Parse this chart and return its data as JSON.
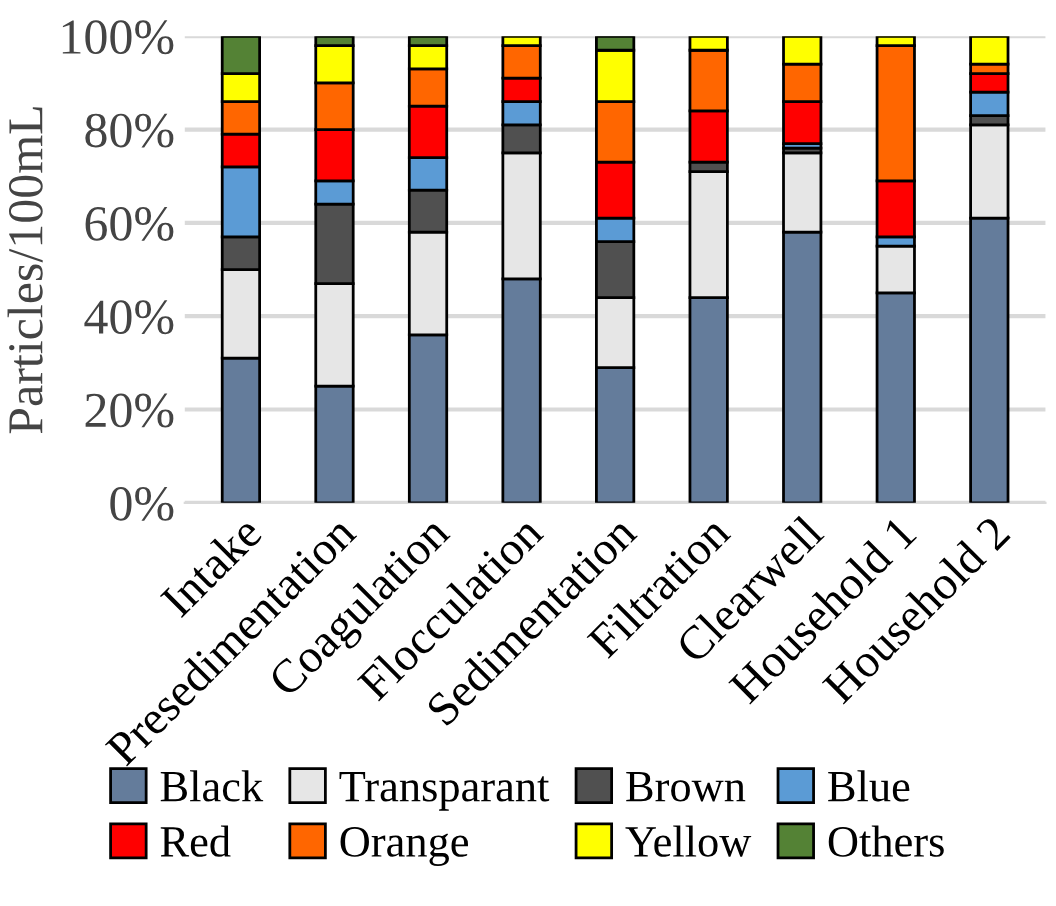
{
  "chart_data": {
    "type": "bar",
    "stacked": true,
    "ylabel": "Particles/100mL",
    "categories": [
      "Intake",
      "Presedimentation",
      "Coagulation",
      "Flocculation",
      "Sedimentation",
      "Filtration",
      "Clearwell",
      "Household 1",
      "Household 2"
    ],
    "series": [
      {
        "name": "Black",
        "color": "#647c9b",
        "values": [
          31,
          25,
          36,
          48,
          29,
          44,
          58,
          45,
          61
        ]
      },
      {
        "name": "Transparant",
        "color": "#e6e6e6",
        "values": [
          19,
          22,
          22,
          27,
          15,
          27,
          17,
          10,
          20
        ]
      },
      {
        "name": "Brown",
        "color": "#505050",
        "values": [
          7,
          17,
          9,
          6,
          12,
          2,
          1,
          0,
          2
        ]
      },
      {
        "name": "Blue",
        "color": "#5b9bd5",
        "values": [
          15,
          5,
          7,
          5,
          5,
          0,
          1,
          2,
          5
        ]
      },
      {
        "name": "Red",
        "color": "#ff0000",
        "values": [
          7,
          11,
          11,
          5,
          12,
          11,
          9,
          12,
          4
        ]
      },
      {
        "name": "Orange",
        "color": "#ff6600",
        "values": [
          7,
          10,
          8,
          7,
          13,
          13,
          8,
          29,
          2
        ]
      },
      {
        "name": "Yellow",
        "color": "#ffff00",
        "values": [
          6,
          8,
          5,
          2,
          11,
          3,
          6,
          2,
          6
        ]
      },
      {
        "name": "Others",
        "color": "#548235",
        "values": [
          8,
          2,
          2,
          0,
          3,
          0,
          0,
          0,
          0
        ]
      }
    ],
    "ylim": [
      0,
      100
    ],
    "yticks": [
      {
        "value": 0,
        "label": "0%"
      },
      {
        "value": 20,
        "label": "20%"
      },
      {
        "value": 40,
        "label": "40%"
      },
      {
        "value": 60,
        "label": "60%"
      },
      {
        "value": 80,
        "label": "80%"
      },
      {
        "value": 100,
        "label": "100%"
      }
    ],
    "grid": "y",
    "legend": "bottom"
  }
}
